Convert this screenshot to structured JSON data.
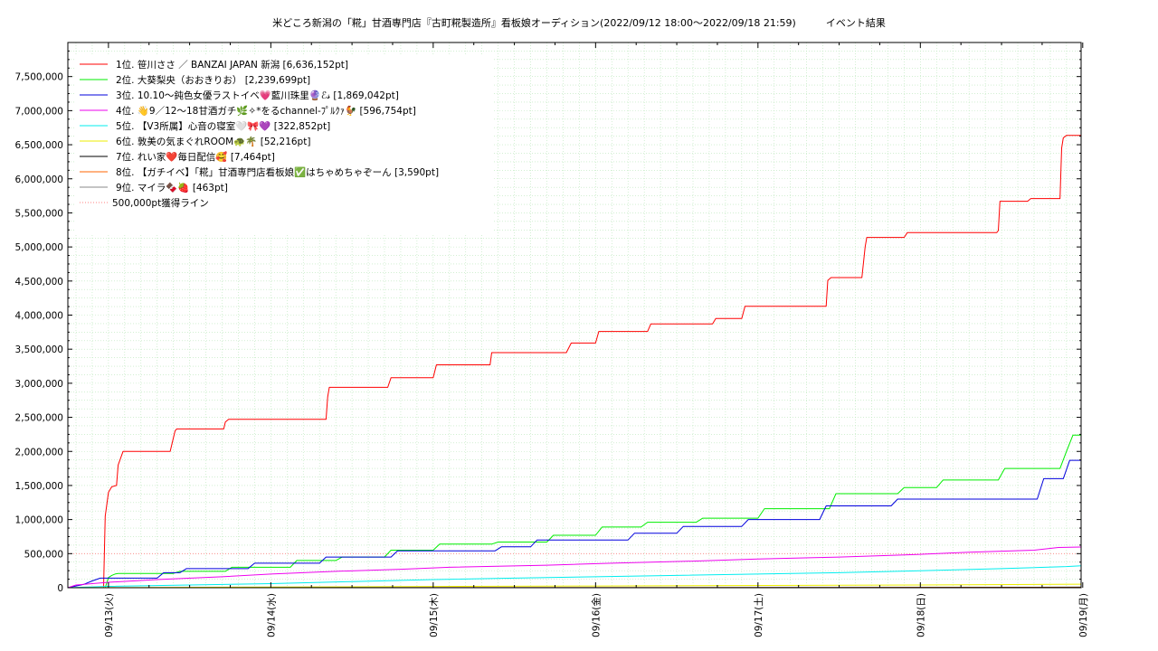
{
  "chart_data": {
    "type": "line",
    "title": "米どころ新潟の「糀」甘酒専門店『古町糀製造所』看板娘オーディション(2022/09/12 18:00〜2022/09/18 21:59)　　　イベント結果",
    "xlabel": "",
    "ylabel": "",
    "ylim": [
      0,
      8000000
    ],
    "xlim": [
      -0.25,
      5.99
    ],
    "grid": true,
    "legend_position": "top-left",
    "y_ticks": [
      0,
      500000,
      1000000,
      1500000,
      2000000,
      2500000,
      3000000,
      3500000,
      4000000,
      4500000,
      5000000,
      5500000,
      6000000,
      6500000,
      7000000,
      7500000
    ],
    "y_tick_labels": [
      "0",
      "500,000",
      "1,000,000",
      "1,500,000",
      "2,000,000",
      "2,500,000",
      "3,000,000",
      "3,500,000",
      "4,000,000",
      "4,500,000",
      "5,000,000",
      "5,500,000",
      "6,000,000",
      "6,500,000",
      "7,000,000",
      "7,500,000"
    ],
    "x_ticks": [
      0,
      1,
      2,
      3,
      4,
      5,
      6
    ],
    "x_tick_labels": [
      "09/13(火)",
      "09/14(水)",
      "09/15(木)",
      "09/16(金)",
      "09/17(土)",
      "09/18(日)",
      "09/19(月)"
    ],
    "reference_line": {
      "name": "500,000pt獲得ライン",
      "value": 500000,
      "color": "#ff8080"
    },
    "series": [
      {
        "name": "1位. 笹川ささ ／ BANZAI JAPAN 新潟 [6,636,152pt]",
        "color": "#ff0000",
        "x": [
          -0.25,
          -0.03,
          -0.02,
          0.0,
          0.02,
          0.05,
          0.06,
          0.09,
          0.38,
          0.41,
          0.42,
          0.71,
          0.72,
          0.74,
          1.34,
          1.35,
          1.36,
          1.72,
          1.74,
          2.0,
          2.02,
          2.35,
          2.36,
          2.82,
          2.85,
          3.0,
          3.02,
          3.32,
          3.34,
          3.72,
          3.74,
          3.9,
          3.92,
          4.42,
          4.43,
          4.45,
          4.64,
          4.66,
          4.67,
          4.9,
          4.92,
          5.47,
          5.48,
          5.49,
          5.66,
          5.68,
          5.86,
          5.87,
          5.88,
          5.9,
          5.99
        ],
        "y": [
          0,
          0,
          1050000,
          1400000,
          1480000,
          1500000,
          1800000,
          2000000,
          2000000,
          2300000,
          2330000,
          2330000,
          2430000,
          2470000,
          2470000,
          2800000,
          2940000,
          2940000,
          3080000,
          3080000,
          3270000,
          3270000,
          3450000,
          3450000,
          3590000,
          3590000,
          3760000,
          3760000,
          3870000,
          3870000,
          3950000,
          3950000,
          4130000,
          4130000,
          4510000,
          4550000,
          4550000,
          5000000,
          5140000,
          5140000,
          5210000,
          5210000,
          5240000,
          5670000,
          5670000,
          5710000,
          5710000,
          6450000,
          6600000,
          6636152,
          6636152
        ]
      },
      {
        "name": "2位. 大葵梨央（おおきりお） [2,239,699pt]",
        "color": "#00ee00",
        "x": [
          -0.25,
          -0.02,
          0.0,
          0.02,
          0.04,
          0.06,
          0.4,
          0.44,
          0.72,
          0.76,
          1.12,
          1.16,
          1.4,
          1.44,
          1.7,
          1.74,
          2.0,
          2.04,
          2.36,
          2.4,
          2.7,
          2.74,
          3.0,
          3.04,
          3.28,
          3.32,
          3.62,
          3.66,
          4.0,
          4.04,
          4.44,
          4.48,
          4.86,
          4.9,
          5.1,
          5.14,
          5.48,
          5.52,
          5.86,
          5.9,
          5.94,
          5.99
        ],
        "y": [
          0,
          0,
          150000,
          180000,
          200000,
          210000,
          210000,
          240000,
          240000,
          300000,
          300000,
          400000,
          400000,
          450000,
          450000,
          550000,
          550000,
          640000,
          640000,
          670000,
          670000,
          770000,
          770000,
          890000,
          890000,
          960000,
          960000,
          1020000,
          1020000,
          1160000,
          1160000,
          1380000,
          1380000,
          1470000,
          1470000,
          1580000,
          1580000,
          1750000,
          1750000,
          2000000,
          2239699,
          2239699
        ]
      },
      {
        "name": "3位. 10.10〜鈍色女優ラストイベ💗藍川珠里🔮ℰ𝓈 [1,869,042pt]",
        "color": "#0000dd",
        "x": [
          -0.25,
          -0.15,
          -0.1,
          -0.05,
          0.3,
          0.34,
          0.44,
          0.48,
          0.86,
          0.9,
          1.3,
          1.34,
          1.74,
          1.78,
          2.38,
          2.42,
          2.6,
          2.64,
          3.2,
          3.24,
          3.5,
          3.54,
          3.9,
          3.94,
          4.38,
          4.42,
          4.82,
          4.86,
          5.72,
          5.76,
          5.88,
          5.92,
          5.99
        ],
        "y": [
          0,
          50000,
          100000,
          140000,
          140000,
          220000,
          220000,
          280000,
          280000,
          360000,
          360000,
          450000,
          450000,
          540000,
          540000,
          600000,
          600000,
          700000,
          700000,
          800000,
          800000,
          900000,
          900000,
          1000000,
          1000000,
          1200000,
          1200000,
          1300000,
          1300000,
          1600000,
          1600000,
          1869042,
          1869042
        ]
      },
      {
        "name": "4位. 👋9／12〜18甘酒ガチ🌿✧*をるchannel-ﾌﾟﾙｸｧ🐓 [596,754pt]",
        "color": "#ee00ee",
        "x": [
          -0.25,
          -0.2,
          0.0,
          0.3,
          0.7,
          1.0,
          1.4,
          1.8,
          2.1,
          2.7,
          3.1,
          3.6,
          4.0,
          4.5,
          4.9,
          5.3,
          5.7,
          5.85,
          5.99
        ],
        "y": [
          0,
          40000,
          80000,
          120000,
          160000,
          200000,
          240000,
          270000,
          300000,
          330000,
          360000,
          390000,
          420000,
          450000,
          480000,
          520000,
          550000,
          590000,
          596754
        ]
      },
      {
        "name": "5位. 【V3所属】心音の寝室🤍🎀💜 [322,852pt]",
        "color": "#00eeee",
        "x": [
          -0.25,
          0.0,
          0.5,
          1.0,
          1.5,
          2.0,
          2.5,
          3.0,
          3.5,
          4.0,
          4.5,
          5.0,
          5.5,
          5.9,
          5.99
        ],
        "y": [
          0,
          20000,
          40000,
          60000,
          90000,
          120000,
          140000,
          160000,
          180000,
          200000,
          220000,
          250000,
          280000,
          310000,
          322852
        ]
      },
      {
        "name": "6位. 敦美の気まぐれROOM🐢🌴 [52,216pt]",
        "color": "#eeee00",
        "x": [
          -0.25,
          1.0,
          3.0,
          5.0,
          5.99
        ],
        "y": [
          0,
          10000,
          25000,
          40000,
          52216
        ]
      },
      {
        "name": "7位. れい家❤️毎日配信🥰 [7,464pt]",
        "color": "#000000",
        "x": [
          -0.25,
          4.5,
          5.99
        ],
        "y": [
          0,
          3000,
          7464
        ]
      },
      {
        "name": "8位. 【ガチイベ】「糀」甘酒専門店看板娘✅はちゃめちゃぞーん [3,590pt]",
        "color": "#ff6600",
        "x": [
          -0.25,
          3.0,
          5.99
        ],
        "y": [
          0,
          1500,
          3590
        ]
      },
      {
        "name": "9位. マイラ🍫🍓 [463pt]",
        "color": "#888888",
        "x": [
          -0.25,
          2.0,
          5.99
        ],
        "y": [
          0,
          200,
          463
        ]
      }
    ]
  }
}
